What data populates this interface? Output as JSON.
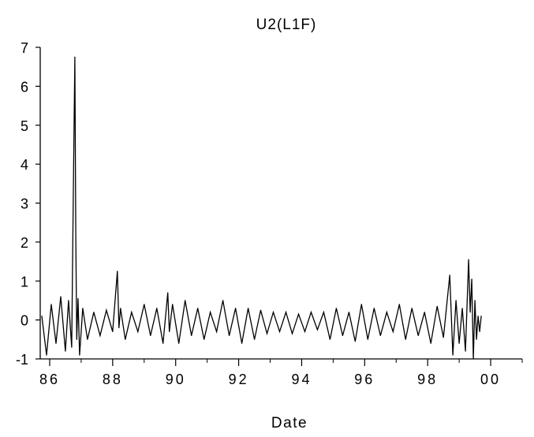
{
  "chart_data": {
    "type": "line",
    "title": "U2(L1F)",
    "xlabel": "Date",
    "ylabel": "",
    "x_axis": "time (years, 1986–2000)",
    "xlim": [
      1985.7,
      2001.0
    ],
    "ylim": [
      -1,
      7
    ],
    "xticks": [
      {
        "value": 1986,
        "label": "86"
      },
      {
        "value": 1988,
        "label": "88"
      },
      {
        "value": 1990,
        "label": "90"
      },
      {
        "value": 1992,
        "label": "92"
      },
      {
        "value": 1994,
        "label": "94"
      },
      {
        "value": 1996,
        "label": "96"
      },
      {
        "value": 1998,
        "label": "98"
      },
      {
        "value": 2000,
        "label": "00"
      }
    ],
    "yticks": [
      {
        "value": -1,
        "label": "-1"
      },
      {
        "value": 0,
        "label": "0"
      },
      {
        "value": 1,
        "label": "1"
      },
      {
        "value": 2,
        "label": "2"
      },
      {
        "value": 3,
        "label": "3"
      },
      {
        "value": 4,
        "label": "4"
      },
      {
        "value": 5,
        "label": "5"
      },
      {
        "value": 6,
        "label": "6"
      },
      {
        "value": 7,
        "label": "7"
      }
    ],
    "grid": false,
    "legend": "none",
    "color": "#000000",
    "series": [
      {
        "x": [
          1985.75,
          1985.9,
          1986.05,
          1986.2,
          1986.35,
          1986.5,
          1986.6,
          1986.7,
          1986.75,
          1986.8,
          1986.83,
          1986.86,
          1986.9,
          1986.95,
          1987.05,
          1987.2,
          1987.4,
          1987.6,
          1987.8,
          1988.0,
          1988.15,
          1988.2,
          1988.25,
          1988.4,
          1988.6,
          1988.8,
          1989.0,
          1989.2,
          1989.4,
          1989.6,
          1989.75,
          1989.8,
          1989.9,
          1990.1,
          1990.3,
          1990.5,
          1990.7,
          1990.9,
          1991.1,
          1991.3,
          1991.5,
          1991.7,
          1991.9,
          1992.1,
          1992.3,
          1992.5,
          1992.7,
          1992.9,
          1993.1,
          1993.3,
          1993.5,
          1993.7,
          1993.9,
          1994.1,
          1994.3,
          1994.5,
          1994.7,
          1994.9,
          1995.1,
          1995.3,
          1995.5,
          1995.7,
          1995.9,
          1996.1,
          1996.3,
          1996.5,
          1996.7,
          1996.9,
          1997.1,
          1997.3,
          1997.5,
          1997.7,
          1997.9,
          1998.1,
          1998.3,
          1998.5,
          1998.7,
          1998.8,
          1998.9,
          1999.0,
          1999.1,
          1999.2,
          1999.3,
          1999.35,
          1999.4,
          1999.45,
          1999.5,
          1999.55,
          1999.6,
          1999.65,
          1999.7
        ],
        "y": [
          0.1,
          -0.9,
          0.4,
          -0.6,
          0.6,
          -0.8,
          0.5,
          -0.7,
          3.15,
          6.75,
          2.1,
          -0.5,
          0.55,
          -0.9,
          0.3,
          -0.5,
          0.2,
          -0.4,
          0.25,
          -0.3,
          1.25,
          -0.2,
          0.3,
          -0.5,
          0.2,
          -0.3,
          0.4,
          -0.4,
          0.3,
          -0.6,
          0.7,
          -0.3,
          0.4,
          -0.6,
          0.5,
          -0.4,
          0.3,
          -0.5,
          0.2,
          -0.3,
          0.5,
          -0.4,
          0.3,
          -0.6,
          0.3,
          -0.5,
          0.25,
          -0.35,
          0.2,
          -0.3,
          0.2,
          -0.35,
          0.15,
          -0.3,
          0.2,
          -0.25,
          0.2,
          -0.5,
          0.3,
          -0.4,
          0.2,
          -0.55,
          0.4,
          -0.5,
          0.3,
          -0.4,
          0.2,
          -0.3,
          0.4,
          -0.5,
          0.3,
          -0.4,
          0.2,
          -0.6,
          0.35,
          -0.45,
          1.15,
          -0.9,
          0.5,
          -0.6,
          0.3,
          -0.8,
          1.55,
          0.2,
          1.05,
          -1.0,
          0.5,
          -0.5,
          0.1,
          -0.3,
          0.1
        ]
      }
    ]
  }
}
